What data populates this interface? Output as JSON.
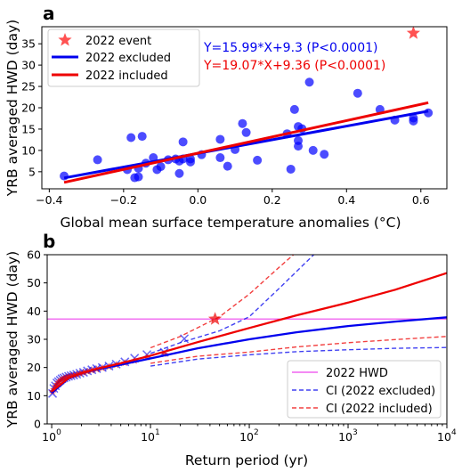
{
  "chart_data": [
    {
      "panel_label": "a",
      "type": "scatter",
      "xlabel": "Global mean surface temperature anomalies (°C)",
      "ylabel": "YRB averaged HWD (day)",
      "xlim": [
        -0.42,
        0.67
      ],
      "ylim": [
        1,
        39
      ],
      "xticks": [
        "−0.4",
        "−0.2",
        "0.0",
        "0.2",
        "0.4",
        "0.6"
      ],
      "xtick_values": [
        -0.4,
        -0.2,
        0.0,
        0.2,
        0.4,
        0.6
      ],
      "yticks": [
        "5",
        "10",
        "15",
        "20",
        "25",
        "30",
        "35"
      ],
      "ytick_values": [
        5,
        10,
        15,
        20,
        25,
        30,
        35
      ],
      "grid": false,
      "legend_position": "top-left",
      "legend": [
        "2022 event",
        "2022 excluded",
        "2022 included"
      ],
      "colors": {
        "points": "#0000ff",
        "event": "#ff3333",
        "excluded": "#0000ee",
        "included": "#ee0000"
      },
      "annotations": [
        {
          "text": "Y=15.99*X+9.3 (P<0.0001)",
          "color": "#0000ee"
        },
        {
          "text": "Y=19.07*X+9.36 (P<0.0001)",
          "color": "#ee0000"
        }
      ],
      "points": [
        [
          -0.36,
          4.0
        ],
        [
          -0.27,
          7.8
        ],
        [
          -0.19,
          5.5
        ],
        [
          -0.18,
          13.0
        ],
        [
          -0.17,
          3.6
        ],
        [
          -0.16,
          3.8
        ],
        [
          -0.16,
          5.8
        ],
        [
          -0.15,
          13.3
        ],
        [
          -0.14,
          7.0
        ],
        [
          -0.12,
          8.3
        ],
        [
          -0.11,
          5.5
        ],
        [
          -0.1,
          6.2
        ],
        [
          -0.08,
          7.8
        ],
        [
          -0.06,
          8.0
        ],
        [
          -0.05,
          4.6
        ],
        [
          -0.05,
          7.5
        ],
        [
          -0.04,
          12.0
        ],
        [
          -0.04,
          8.0
        ],
        [
          -0.02,
          7.3
        ],
        [
          -0.02,
          8.0
        ],
        [
          0.01,
          9.0
        ],
        [
          0.06,
          8.3
        ],
        [
          0.06,
          12.6
        ],
        [
          0.08,
          6.3
        ],
        [
          0.1,
          10.2
        ],
        [
          0.12,
          16.3
        ],
        [
          0.13,
          14.2
        ],
        [
          0.16,
          7.7
        ],
        [
          0.24,
          13.9
        ],
        [
          0.25,
          5.6
        ],
        [
          0.26,
          19.6
        ],
        [
          0.27,
          11.0
        ],
        [
          0.27,
          12.3
        ],
        [
          0.27,
          15.6
        ],
        [
          0.28,
          15.1
        ],
        [
          0.3,
          26.0
        ],
        [
          0.31,
          10.0
        ],
        [
          0.34,
          9.1
        ],
        [
          0.43,
          23.4
        ],
        [
          0.49,
          19.6
        ],
        [
          0.53,
          17.1
        ],
        [
          0.58,
          17.6
        ],
        [
          0.58,
          16.9
        ],
        [
          0.62,
          18.8
        ]
      ],
      "event_point": [
        0.58,
        37.5
      ],
      "series": [
        {
          "name": "2022 excluded",
          "slope": 15.99,
          "intercept": 9.3,
          "x_range": [
            -0.36,
            0.62
          ]
        },
        {
          "name": "2022 included",
          "slope": 19.07,
          "intercept": 9.36,
          "x_range": [
            -0.36,
            0.62
          ]
        }
      ]
    },
    {
      "panel_label": "b",
      "type": "line",
      "x_scale": "log",
      "xlabel": "Return period (yr)",
      "ylabel": "YRB averaged HWD (day)",
      "xlim": [
        0.9,
        10000
      ],
      "ylim": [
        0,
        60
      ],
      "xticks": [
        {
          "base": "10",
          "exp": "0"
        },
        {
          "base": "10",
          "exp": "1"
        },
        {
          "base": "10",
          "exp": "2"
        },
        {
          "base": "10",
          "exp": "3"
        },
        {
          "base": "10",
          "exp": "4"
        }
      ],
      "xtick_values": [
        1,
        10,
        100,
        1000,
        10000
      ],
      "yticks": [
        "0",
        "10",
        "20",
        "30",
        "40",
        "50",
        "60"
      ],
      "ytick_values": [
        0,
        10,
        20,
        30,
        40,
        50,
        60
      ],
      "grid": false,
      "legend_position": "bottom-right",
      "legend": [
        "2022 HWD",
        "CI (2022 excluded)",
        "CI (2022 included)"
      ],
      "colors": {
        "hwd": "#ee44ee",
        "excluded": "#0000ee",
        "included": "#ee0000"
      },
      "hwd_2022": 37.2,
      "event_point": [
        45,
        37.2
      ],
      "empirical_excluded": [
        [
          1.02,
          10.8
        ],
        [
          1.05,
          12.6
        ],
        [
          1.09,
          13.5
        ],
        [
          1.13,
          14.5
        ],
        [
          1.17,
          15.0
        ],
        [
          1.22,
          15.5
        ],
        [
          1.27,
          16.0
        ],
        [
          1.33,
          16.3
        ],
        [
          1.4,
          16.6
        ],
        [
          1.48,
          16.9
        ],
        [
          1.57,
          17.1
        ],
        [
          1.67,
          17.3
        ],
        [
          1.79,
          17.6
        ],
        [
          1.93,
          18.0
        ],
        [
          2.1,
          18.3
        ],
        [
          2.3,
          18.8
        ],
        [
          2.55,
          19.2
        ],
        [
          2.85,
          19.6
        ],
        [
          3.25,
          20.0
        ],
        [
          3.8,
          20.5
        ],
        [
          4.5,
          21.2
        ],
        [
          5.5,
          22.0
        ],
        [
          6.9,
          23.3
        ],
        [
          9.2,
          24.6
        ],
        [
          13.8,
          25.4
        ],
        [
          22.0,
          30.2
        ]
      ],
      "empirical_included": [
        [
          1.02,
          11.5
        ],
        [
          1.05,
          12.2
        ],
        [
          1.09,
          13.3
        ],
        [
          1.13,
          14.1
        ],
        [
          1.17,
          14.8
        ],
        [
          1.22,
          15.3
        ],
        [
          1.27,
          15.8
        ],
        [
          1.33,
          16.2
        ],
        [
          1.4,
          16.5
        ],
        [
          1.48,
          16.8
        ],
        [
          1.57,
          17.0
        ],
        [
          1.67,
          17.3
        ],
        [
          1.79,
          17.5
        ],
        [
          1.93,
          17.9
        ],
        [
          2.1,
          18.2
        ],
        [
          2.3,
          18.6
        ],
        [
          2.55,
          19.0
        ],
        [
          2.85,
          19.4
        ],
        [
          3.25,
          19.8
        ],
        [
          3.8,
          20.3
        ],
        [
          4.5,
          20.9
        ],
        [
          5.5,
          21.6
        ],
        [
          6.9,
          22.4
        ],
        [
          9.2,
          23.6
        ],
        [
          13.8,
          24.8
        ]
      ],
      "series": [
        {
          "name": "2022 excluded",
          "points": [
            [
              1,
              11.0
            ],
            [
              1.5,
              16.3
            ],
            [
              2,
              18.0
            ],
            [
              3,
              19.5
            ],
            [
              5,
              21.0
            ],
            [
              10,
              23.2
            ],
            [
              30,
              26.8
            ],
            [
              100,
              30.0
            ],
            [
              300,
              32.5
            ],
            [
              1000,
              34.7
            ],
            [
              3000,
              36.3
            ],
            [
              10000,
              37.8
            ]
          ]
        },
        {
          "name": "2022 included",
          "points": [
            [
              1,
              11.5
            ],
            [
              1.5,
              16.4
            ],
            [
              2,
              18.0
            ],
            [
              3,
              19.7
            ],
            [
              5,
              21.5
            ],
            [
              10,
              24.2
            ],
            [
              30,
              29.0
            ],
            [
              100,
              34.0
            ],
            [
              300,
              38.5
            ],
            [
              1000,
              43.0
            ],
            [
              3000,
              47.6
            ],
            [
              10000,
              53.5
            ]
          ]
        },
        {
          "name": "CI (2022 excluded)",
          "upper": [
            [
              10,
              25.0
            ],
            [
              20,
              28.8
            ],
            [
              50,
              33.0
            ],
            [
              100,
              38.0
            ],
            [
              200,
              48.0
            ],
            [
              450,
              60.0
            ]
          ],
          "lower": [
            [
              10,
              20.5
            ],
            [
              30,
              23.0
            ],
            [
              100,
              24.5
            ],
            [
              300,
              25.6
            ],
            [
              1000,
              26.3
            ],
            [
              3000,
              26.8
            ],
            [
              10000,
              27.1
            ]
          ]
        },
        {
          "name": "CI (2022 included)",
          "upper": [
            [
              10,
              27.0
            ],
            [
              20,
              31.0
            ],
            [
              50,
              38.0
            ],
            [
              100,
              46.0
            ],
            [
              200,
              55.5
            ],
            [
              280,
              60.0
            ]
          ],
          "lower": [
            [
              10,
              21.5
            ],
            [
              30,
              24.0
            ],
            [
              100,
              25.5
            ],
            [
              300,
              27.3
            ],
            [
              1000,
              28.8
            ],
            [
              3000,
              29.9
            ],
            [
              10000,
              31.0
            ]
          ]
        }
      ]
    }
  ]
}
